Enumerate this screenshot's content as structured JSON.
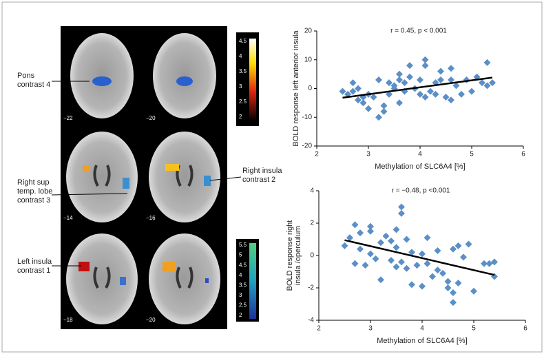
{
  "figure": {
    "slices": [
      "−22",
      "−20",
      "−14",
      "−16",
      "−18",
      "−20"
    ],
    "labels": [
      {
        "lines": [
          "Pons",
          "contrast 4"
        ]
      },
      {
        "lines": [
          "Right sup",
          "temp. lobe",
          "contrast 3"
        ]
      },
      {
        "lines": [
          "Right insula",
          "contrast 2"
        ]
      },
      {
        "lines": [
          "Left insula",
          "contrast 1"
        ]
      }
    ],
    "colorbars": [
      {
        "ticks": [
          4.5,
          4,
          3.5,
          3,
          2.5,
          2
        ]
      },
      {
        "ticks": [
          5.5,
          5,
          4.5,
          4,
          3.5,
          3,
          2.5,
          2
        ]
      }
    ]
  },
  "chart_data": [
    {
      "type": "scatter",
      "title": "r = 0.45, p < 0.001",
      "x_label": "Methylation of SLC6A4 [%]",
      "y_label": [
        "BOLD response left anterior insula"
      ],
      "color": "#5b8fc7",
      "x": [
        2.5,
        2.6,
        2.7,
        2.7,
        2.8,
        2.8,
        2.9,
        2.9,
        3.0,
        3.0,
        3.1,
        3.2,
        3.2,
        3.3,
        3.3,
        3.4,
        3.4,
        3.5,
        3.5,
        3.6,
        3.6,
        3.6,
        3.7,
        3.7,
        3.8,
        3.8,
        3.9,
        4.0,
        4.0,
        4.1,
        4.1,
        4.1,
        4.2,
        4.3,
        4.3,
        4.4,
        4.4,
        4.5,
        4.6,
        4.6,
        4.6,
        4.7,
        4.8,
        4.9,
        5.0,
        5.1,
        5.2,
        5.3,
        5.3,
        5.4
      ],
      "values": [
        -1,
        -2,
        2,
        -1,
        0,
        -4,
        -5,
        -3,
        -2,
        -7,
        -3,
        3,
        -10,
        -8,
        -6,
        2,
        -2,
        1,
        0,
        5,
        -5,
        3,
        -1,
        2,
        4,
        8,
        0,
        -2,
        3,
        8,
        10,
        -3,
        -1,
        2,
        -2,
        6,
        3,
        -3,
        -4,
        7,
        3,
        1,
        -2,
        3,
        -1,
        4,
        2,
        9,
        1,
        2
      ],
      "trendline": {
        "x": [
          2.5,
          5.4
        ],
        "y": [
          -3.2,
          3.8
        ]
      },
      "xlim": [
        2,
        6
      ],
      "xticks": [
        2,
        3,
        4,
        5,
        6
      ],
      "ylim": [
        -20,
        20
      ],
      "yticks": [
        -20,
        -10,
        0,
        10,
        20
      ]
    },
    {
      "type": "scatter",
      "title": "r = −0.48, p <0.001",
      "x_label": "Methylation of SLC6A4 [%]",
      "y_label": [
        "BOLD response right",
        "insula /operculum"
      ],
      "color": "#5b8fc7",
      "x": [
        2.5,
        2.6,
        2.7,
        2.7,
        2.8,
        2.8,
        2.9,
        3.0,
        3.0,
        3.0,
        3.1,
        3.2,
        3.2,
        3.3,
        3.4,
        3.4,
        3.5,
        3.5,
        3.5,
        3.6,
        3.6,
        3.6,
        3.7,
        3.7,
        3.8,
        3.8,
        3.9,
        4.0,
        4.0,
        4.1,
        4.1,
        4.2,
        4.3,
        4.3,
        4.4,
        4.5,
        4.5,
        4.6,
        4.6,
        4.6,
        4.7,
        4.7,
        4.8,
        4.9,
        5.0,
        5.2,
        5.3,
        5.4,
        5.4
      ],
      "values": [
        0.6,
        1.1,
        1.9,
        -0.5,
        0.4,
        1.4,
        -0.6,
        1.8,
        1.5,
        0.1,
        -0.2,
        -1.5,
        0.8,
        1.2,
        0.9,
        -0.3,
        1.6,
        0.5,
        -0.7,
        3.0,
        2.6,
        -0.4,
        1.0,
        -0.8,
        0.2,
        -1.8,
        -0.6,
        0.1,
        -1.9,
        1.1,
        -0.5,
        -1.3,
        0.3,
        -0.9,
        -1.1,
        -2.0,
        -1.6,
        0.4,
        -2.9,
        -2.3,
        0.6,
        -1.7,
        -0.1,
        0.7,
        -2.2,
        -0.5,
        -0.5,
        -0.4,
        -1.3
      ],
      "trendline": {
        "x": [
          2.5,
          5.4
        ],
        "y": [
          0.95,
          -1.2
        ]
      },
      "xlim": [
        2,
        6
      ],
      "xticks": [
        2,
        3,
        4,
        5,
        6
      ],
      "ylim": [
        -4,
        4
      ],
      "yticks": [
        -4,
        -2,
        0,
        2,
        4
      ]
    }
  ]
}
